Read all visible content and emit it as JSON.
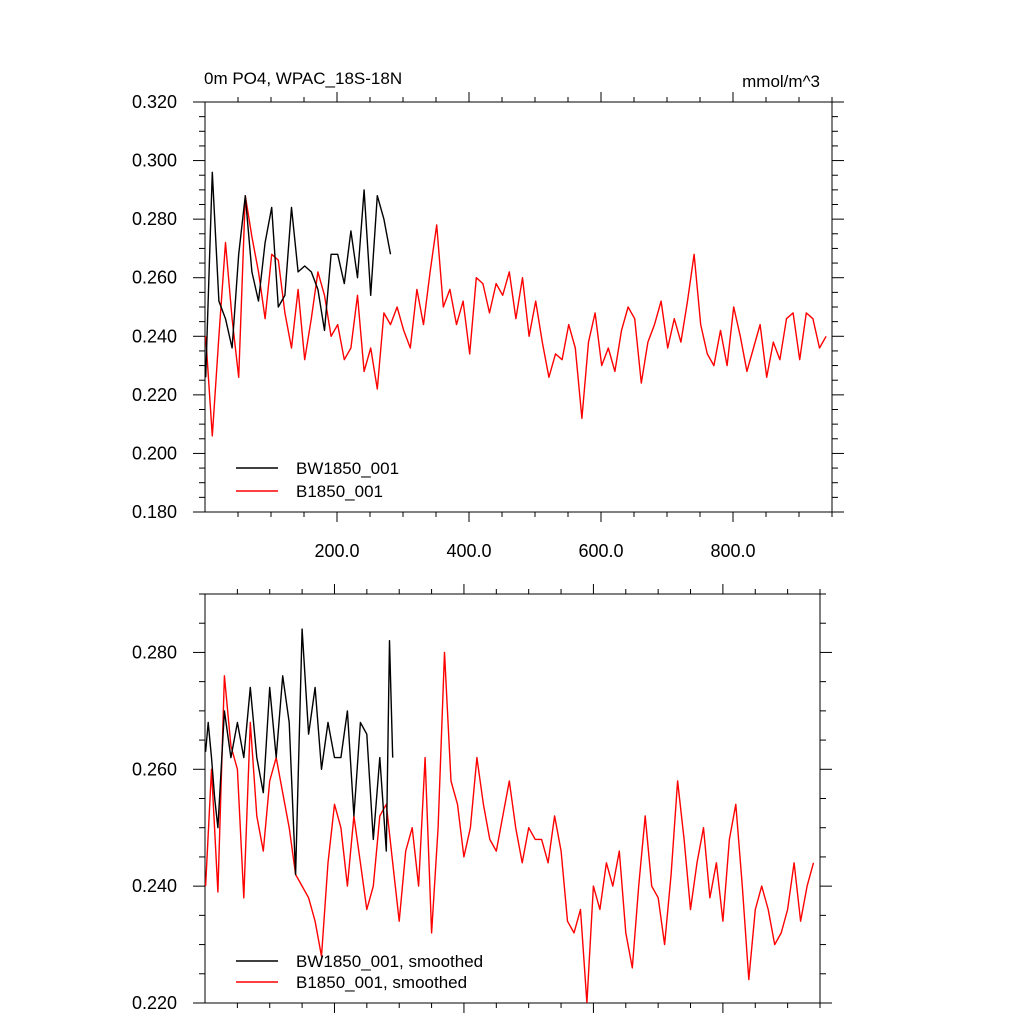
{
  "chart_data": [
    {
      "type": "line",
      "title": "0m PO4, WPAC_18S-18N",
      "units": "mmol/m^3",
      "xlim": [
        0,
        950
      ],
      "ylim": [
        0.18,
        0.32
      ],
      "x_ticks": [
        200,
        400,
        600,
        800
      ],
      "x_tick_labels": [
        "200.0",
        "400.0",
        "600.0",
        "800.0"
      ],
      "y_ticks": [
        0.18,
        0.2,
        0.22,
        0.24,
        0.26,
        0.28,
        0.3,
        0.32
      ],
      "y_tick_labels": [
        "0.180",
        "0.200",
        "0.220",
        "0.240",
        "0.260",
        "0.280",
        "0.300",
        "0.320"
      ],
      "legend_position": "bottom-left",
      "series": [
        {
          "name": "BW1850_001",
          "color": "#000000",
          "x_start": 1,
          "x_step": 10,
          "values": [
            0.226,
            0.296,
            0.252,
            0.246,
            0.236,
            0.268,
            0.288,
            0.262,
            0.252,
            0.272,
            0.284,
            0.25,
            0.254,
            0.284,
            0.262,
            0.264,
            0.262,
            0.256,
            0.242,
            0.268,
            0.268,
            0.258,
            0.276,
            0.26,
            0.29,
            0.254,
            0.288,
            0.28,
            0.268
          ]
        },
        {
          "name": "B1850_001",
          "color": "#ff0000",
          "x_start": 1,
          "x_step": 10,
          "values": [
            0.24,
            0.206,
            0.24,
            0.272,
            0.246,
            0.226,
            0.288,
            0.274,
            0.262,
            0.246,
            0.268,
            0.266,
            0.248,
            0.236,
            0.256,
            0.232,
            0.246,
            0.262,
            0.254,
            0.24,
            0.244,
            0.232,
            0.236,
            0.254,
            0.228,
            0.236,
            0.222,
            0.248,
            0.244,
            0.25,
            0.242,
            0.236,
            0.256,
            0.244,
            0.262,
            0.278,
            0.25,
            0.256,
            0.244,
            0.252,
            0.234,
            0.26,
            0.258,
            0.248,
            0.258,
            0.254,
            0.262,
            0.246,
            0.26,
            0.24,
            0.252,
            0.238,
            0.226,
            0.234,
            0.232,
            0.244,
            0.236,
            0.212,
            0.238,
            0.248,
            0.23,
            0.236,
            0.228,
            0.242,
            0.25,
            0.246,
            0.224,
            0.238,
            0.244,
            0.252,
            0.236,
            0.246,
            0.238,
            0.252,
            0.268,
            0.244,
            0.234,
            0.23,
            0.242,
            0.23,
            0.25,
            0.24,
            0.228,
            0.236,
            0.244,
            0.226,
            0.238,
            0.232,
            0.246,
            0.248,
            0.232,
            0.248,
            0.246,
            0.236,
            0.24
          ]
        }
      ]
    },
    {
      "type": "line",
      "xlim": [
        0,
        950
      ],
      "ylim": [
        0.22,
        0.29
      ],
      "y_ticks": [
        0.22,
        0.24,
        0.26,
        0.28
      ],
      "y_tick_labels": [
        "0.220",
        "0.240",
        "0.260",
        "0.280"
      ],
      "legend_position": "bottom-left",
      "series": [
        {
          "name": "BW1850_001, smoothed",
          "color": "#000000",
          "x": [
            1,
            5,
            10,
            15,
            20,
            30,
            40,
            50,
            60,
            70,
            80,
            90,
            100,
            110,
            120,
            130,
            140,
            150,
            160,
            170,
            180,
            190,
            200,
            210,
            220,
            230,
            240,
            250,
            260,
            270,
            280,
            285,
            290
          ],
          "values": [
            0.263,
            0.268,
            0.262,
            0.255,
            0.25,
            0.27,
            0.262,
            0.268,
            0.262,
            0.274,
            0.262,
            0.256,
            0.274,
            0.262,
            0.276,
            0.268,
            0.242,
            0.284,
            0.266,
            0.274,
            0.26,
            0.268,
            0.262,
            0.262,
            0.27,
            0.252,
            0.268,
            0.266,
            0.248,
            0.262,
            0.246,
            0.282,
            0.262
          ]
        },
        {
          "name": "B1850_001, smoothed",
          "color": "#ff0000",
          "x": [
            1,
            10,
            20,
            30,
            40,
            50,
            60,
            70,
            80,
            90,
            100,
            110,
            120,
            130,
            140,
            150,
            160,
            170,
            180,
            190,
            200,
            210,
            220,
            230,
            240,
            250,
            260,
            270,
            280,
            290,
            300,
            310,
            320,
            330,
            340,
            350,
            360,
            370,
            380,
            390,
            400,
            410,
            420,
            430,
            440,
            450,
            460,
            470,
            480,
            490,
            500,
            510,
            520,
            530,
            540,
            550,
            560,
            570,
            580,
            590,
            600,
            610,
            620,
            630,
            640,
            650,
            660,
            670,
            680,
            690,
            700,
            710,
            720,
            730,
            740,
            750,
            760,
            770,
            780,
            790,
            800,
            810,
            820,
            830,
            840,
            850,
            860,
            870,
            880,
            890,
            900,
            910,
            920,
            930,
            940
          ],
          "values": [
            0.24,
            0.26,
            0.239,
            0.276,
            0.264,
            0.26,
            0.238,
            0.268,
            0.252,
            0.246,
            0.258,
            0.262,
            0.256,
            0.25,
            0.242,
            0.24,
            0.238,
            0.234,
            0.228,
            0.244,
            0.254,
            0.25,
            0.24,
            0.252,
            0.244,
            0.236,
            0.24,
            0.252,
            0.254,
            0.244,
            0.234,
            0.246,
            0.25,
            0.24,
            0.262,
            0.232,
            0.25,
            0.28,
            0.258,
            0.254,
            0.245,
            0.25,
            0.262,
            0.254,
            0.248,
            0.246,
            0.252,
            0.258,
            0.25,
            0.244,
            0.25,
            0.248,
            0.248,
            0.244,
            0.252,
            0.246,
            0.234,
            0.232,
            0.236,
            0.22,
            0.24,
            0.236,
            0.244,
            0.24,
            0.246,
            0.232,
            0.226,
            0.24,
            0.252,
            0.24,
            0.238,
            0.23,
            0.242,
            0.258,
            0.248,
            0.236,
            0.244,
            0.25,
            0.238,
            0.244,
            0.234,
            0.248,
            0.254,
            0.24,
            0.224,
            0.236,
            0.24,
            0.236,
            0.23,
            0.232,
            0.236,
            0.244,
            0.234,
            0.24,
            0.244
          ]
        }
      ]
    }
  ]
}
